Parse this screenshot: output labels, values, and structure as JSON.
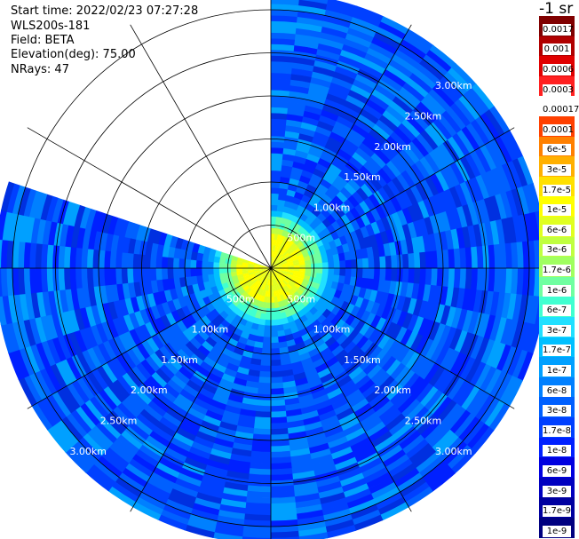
{
  "header": {
    "start_time": "Start time: 2022/02/23 07:27:28",
    "instrument": "WLS200s-181",
    "field": "Field: BETA",
    "elevation": "Elevation(deg): 75.00",
    "nrays": "NRays: 47"
  },
  "colorbar": {
    "title": "-1 sr",
    "labels": [
      "0.0017",
      "0.001",
      "0.0006",
      "0.0003",
      "0.00017",
      "0.0001",
      "6e-5",
      "3e-5",
      "1.7e-5",
      "1e-5",
      "6e-6",
      "3e-6",
      "1.7e-6",
      "1e-6",
      "6e-7",
      "3e-7",
      "1.7e-7",
      "1e-7",
      "6e-8",
      "3e-8",
      "1.7e-8",
      "1e-8",
      "6e-9",
      "3e-9",
      "1.7e-9",
      "1e-9"
    ],
    "colors": [
      "#800000",
      "#b00000",
      "#e00000",
      "#ff2020",
      "#ffffff",
      "#ff4000",
      "#ff8000",
      "#ffb000",
      "#ffe000",
      "#ffff00",
      "#e0ff20",
      "#c0ff40",
      "#a0ff60",
      "#70ffa0",
      "#40ffd0",
      "#20e0ff",
      "#00c0ff",
      "#00a0ff",
      "#0080ff",
      "#0060ff",
      "#0040ff",
      "#0020ff",
      "#0000e0",
      "#0000c0",
      "#0000a0",
      "#000080"
    ]
  },
  "chart_data": {
    "type": "heatmap",
    "projection": "polar (PPI scan)",
    "field": "BETA",
    "elevation_deg": 75.0,
    "nrays": 47,
    "range_ring_labels_upper_right": [
      "500m",
      "1.00km",
      "1.50km",
      "2.00km",
      "2.50km",
      "3.00km"
    ],
    "range_ring_labels_lower_right": [
      "500m",
      "1.00km",
      "1.50km",
      "2.00km",
      "2.50km",
      "3.00km"
    ],
    "range_ring_labels_lower_left": [
      "500m",
      "1.00km",
      "1.50km",
      "2.00km",
      "2.50km",
      "3.00km"
    ],
    "range_rings_km": [
      0.5,
      1.0,
      1.5,
      2.0,
      2.5,
      3.0
    ],
    "max_range_km": 3.2,
    "azimuth_spokes_deg": [
      0,
      30,
      60,
      90,
      120,
      150,
      180,
      210,
      240,
      270,
      300,
      330
    ],
    "scanned_azimuth_deg": [
      0,
      288
    ],
    "value_profile_by_range": [
      {
        "range_km": 0.1,
        "color": "#e0ff20"
      },
      {
        "range_km": 0.35,
        "color": "#e0ff20"
      },
      {
        "range_km": 0.45,
        "color": "#a0ff60"
      },
      {
        "range_km": 0.55,
        "color": "#40ffd0"
      },
      {
        "range_km": 0.7,
        "color": "#00c0ff"
      },
      {
        "range_km": 0.85,
        "color": "#0080ff"
      },
      {
        "range_km": 1.2,
        "color": "#0060ff"
      },
      {
        "range_km": 3.2,
        "color": "#0040ff"
      }
    ],
    "background_color_range": [
      "#0020ff",
      "#00a0ff"
    ]
  }
}
